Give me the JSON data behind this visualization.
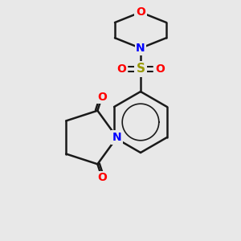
{
  "bg_color": "#e8e8e8",
  "bond_color": "#1a1a1a",
  "bond_lw": 1.8,
  "aromatic_lw": 1.6,
  "atom_colors": {
    "O": "#ff0000",
    "N": "#0000ff",
    "S": "#999900",
    "C": "#1a1a1a"
  },
  "font_size": 9,
  "font_size_large": 10
}
